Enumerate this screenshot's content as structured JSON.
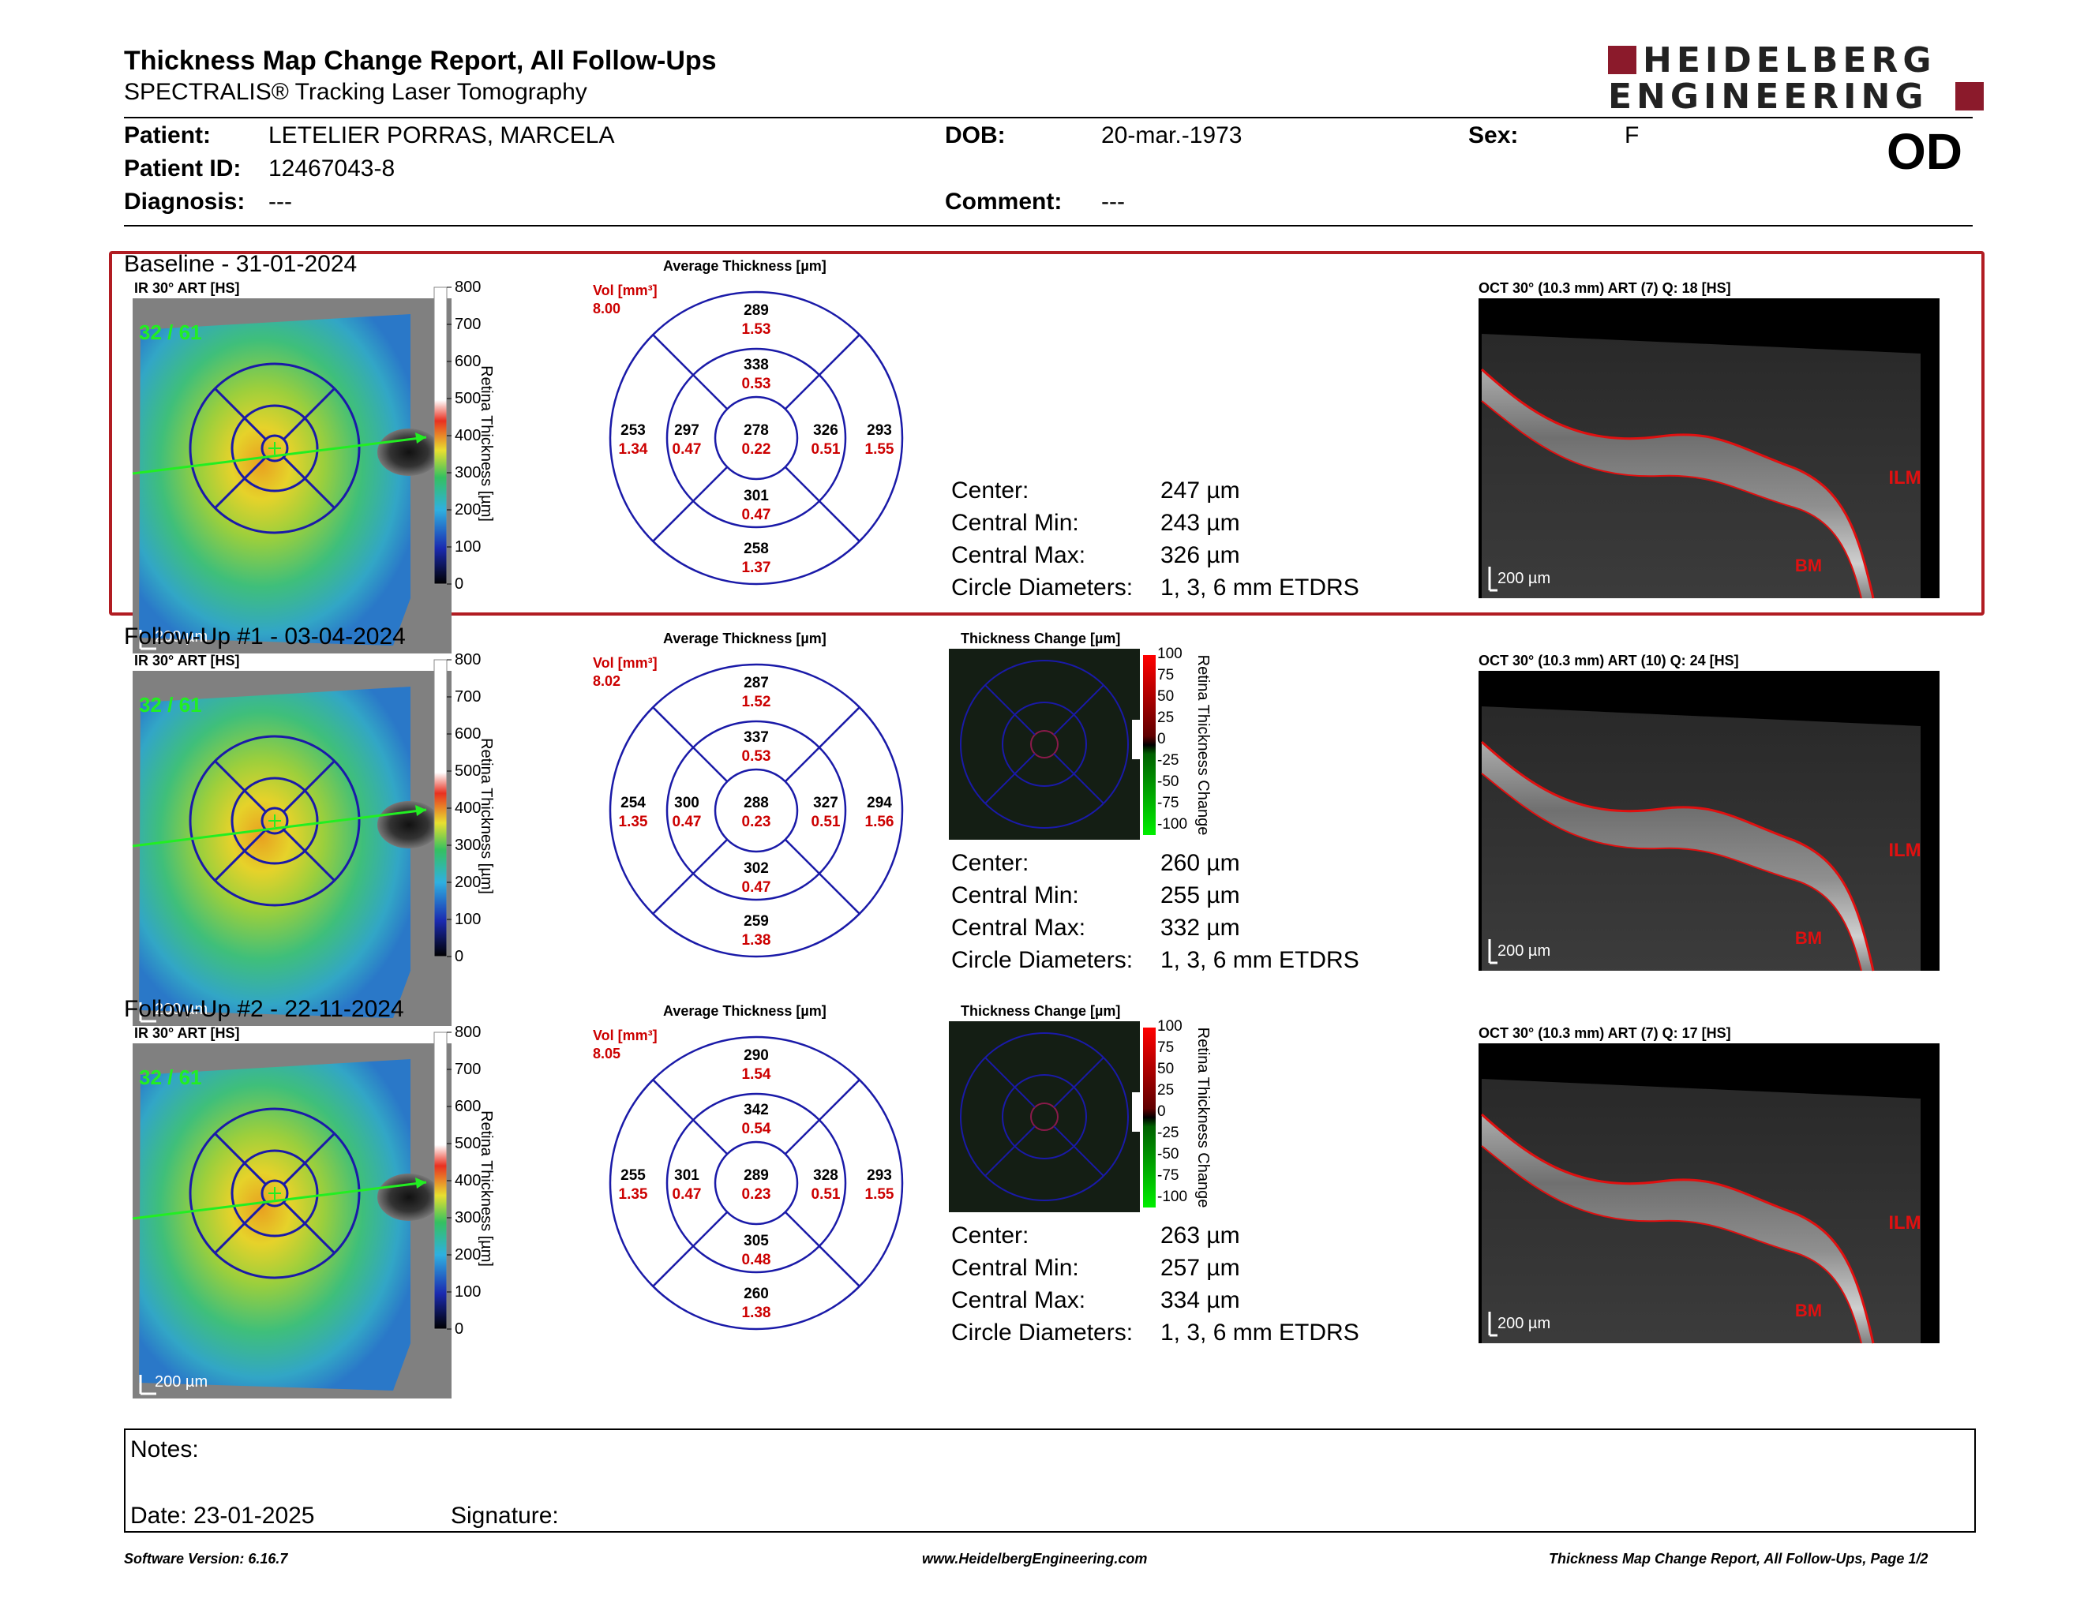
{
  "header": {
    "title": "Thickness Map Change Report, All Follow-Ups",
    "subtitle": "SPECTRALIS® Tracking Laser Tomography",
    "logo_line1": "HEIDELBERG",
    "logo_line2": "ENGINEERING",
    "eye": "OD"
  },
  "patient": {
    "patient_label": "Patient:",
    "patient_value": "LETELIER PORRAS, MARCELA",
    "id_label": "Patient ID:",
    "id_value": "12467043-8",
    "diagnosis_label": "Diagnosis:",
    "diagnosis_value": "---",
    "dob_label": "DOB:",
    "dob_value": "20-mar.-1973",
    "comment_label": "Comment:",
    "comment_value": "---",
    "sex_label": "Sex:",
    "sex_value": "F"
  },
  "colorbar": {
    "thickness_label": "Retina Thickness [µm]",
    "thickness_ticks": [
      "800",
      "700",
      "600",
      "500",
      "400",
      "300",
      "200",
      "100",
      "0"
    ],
    "change_label": "Retina Thickness Change",
    "change_ticks": [
      "100",
      "75",
      "50",
      "25",
      "0",
      "-25",
      "-50",
      "-75",
      "-100"
    ]
  },
  "labels": {
    "ir_label": "IR 30° ART [HS]",
    "avg_thickness": "Average Thickness [µm]",
    "thickness_change": "Thickness Change [µm]",
    "vol_label": "Vol [mm³]",
    "scale": "200 µm",
    "center": "Center:",
    "central_min": "Central Min:",
    "central_max": "Central Max:",
    "circle_diam": "Circle Diameters:",
    "ilm": "ILM",
    "bm": "BM"
  },
  "sections": [
    {
      "title": "Baseline - 31-01-2024",
      "frames": "32 / 61",
      "oct_label": "OCT 30° (10.3 mm) ART (7) Q: 18 [HS]",
      "vol": "8.00",
      "grid": {
        "center": [
          "278",
          "0.22"
        ],
        "inner_top": [
          "338",
          "0.53"
        ],
        "inner_bottom": [
          "301",
          "0.47"
        ],
        "inner_left": [
          "297",
          "0.47"
        ],
        "inner_right": [
          "326",
          "0.51"
        ],
        "outer_top": [
          "289",
          "1.53"
        ],
        "outer_bottom": [
          "258",
          "1.37"
        ],
        "outer_left": [
          "253",
          "1.34"
        ],
        "outer_right": [
          "293",
          "1.55"
        ]
      },
      "stats": {
        "center": "247 µm",
        "central_min": "243 µm",
        "central_max": "326 µm",
        "circle_diam": "1, 3, 6 mm ETDRS"
      }
    },
    {
      "title": "Follow-Up #1 - 03-04-2024",
      "frames": "32 / 61",
      "oct_label": "OCT 30° (10.3 mm) ART (10) Q: 24 [HS]",
      "vol": "8.02",
      "grid": {
        "center": [
          "288",
          "0.23"
        ],
        "inner_top": [
          "337",
          "0.53"
        ],
        "inner_bottom": [
          "302",
          "0.47"
        ],
        "inner_left": [
          "300",
          "0.47"
        ],
        "inner_right": [
          "327",
          "0.51"
        ],
        "outer_top": [
          "287",
          "1.52"
        ],
        "outer_bottom": [
          "259",
          "1.38"
        ],
        "outer_left": [
          "254",
          "1.35"
        ],
        "outer_right": [
          "294",
          "1.56"
        ]
      },
      "stats": {
        "center": "260 µm",
        "central_min": "255 µm",
        "central_max": "332 µm",
        "circle_diam": "1, 3, 6 mm ETDRS"
      }
    },
    {
      "title": "Follow-Up #2 - 22-11-2024",
      "frames": "32 / 61",
      "oct_label": "OCT 30° (10.3 mm) ART (7) Q: 17 [HS]",
      "vol": "8.05",
      "grid": {
        "center": [
          "289",
          "0.23"
        ],
        "inner_top": [
          "342",
          "0.54"
        ],
        "inner_bottom": [
          "305",
          "0.48"
        ],
        "inner_left": [
          "301",
          "0.47"
        ],
        "inner_right": [
          "328",
          "0.51"
        ],
        "outer_top": [
          "290",
          "1.54"
        ],
        "outer_bottom": [
          "260",
          "1.38"
        ],
        "outer_left": [
          "255",
          "1.35"
        ],
        "outer_right": [
          "293",
          "1.55"
        ]
      },
      "stats": {
        "center": "263 µm",
        "central_min": "257 µm",
        "central_max": "334 µm",
        "circle_diam": "1, 3, 6 mm ETDRS"
      }
    }
  ],
  "notes": {
    "notes_label": "Notes:",
    "date_label": "Date: 23-01-2025",
    "signature_label": "Signature:"
  },
  "footer": {
    "version": "Software Version: 6.16.7",
    "url": "www.HeidelbergEngineering.com",
    "page": "Thickness Map Change Report, All Follow-Ups, Page 1/2"
  },
  "colors": {
    "accent_red": "#b11c22",
    "grid_blue": "#1a1aa8",
    "value_red": "#cc0000"
  }
}
